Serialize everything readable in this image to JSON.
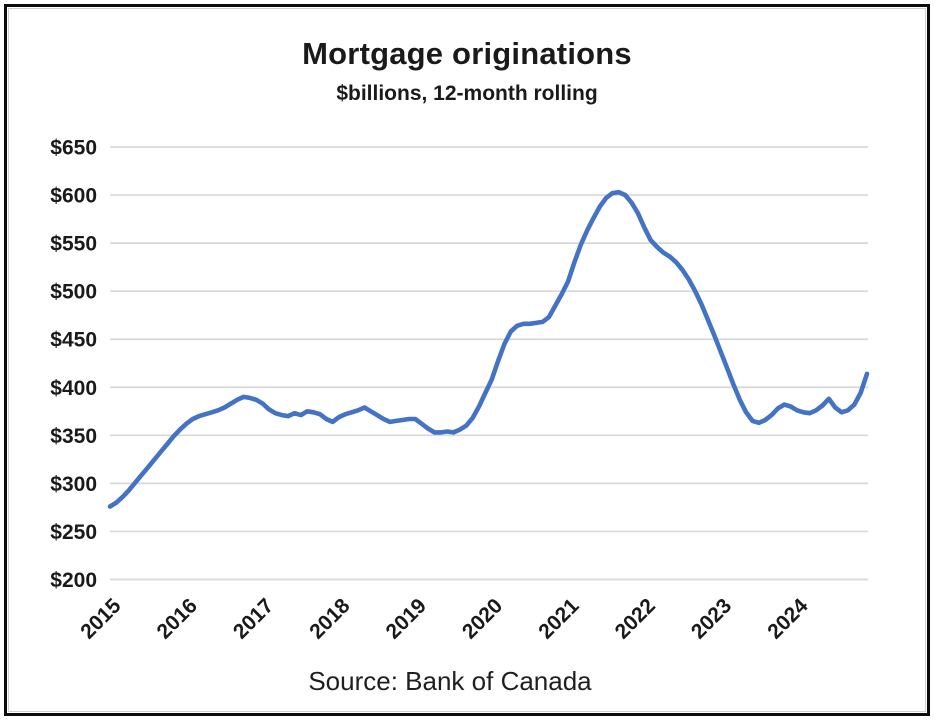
{
  "chart_data": {
    "type": "line",
    "title": "Mortgage originations",
    "subtitle": "$billions, 12-month rolling",
    "source": "Source: Bank of Canada",
    "xlabel": "",
    "ylabel": "",
    "ylim": [
      200,
      650
    ],
    "y_tick_step": 50,
    "y_tick_labels": [
      "$200",
      "$250",
      "$300",
      "$350",
      "$400",
      "$450",
      "$500",
      "$550",
      "$600",
      "$650"
    ],
    "x_tick_labels": [
      "2015",
      "2016",
      "2017",
      "2018",
      "2019",
      "2020",
      "2021",
      "2022",
      "2023",
      "2024"
    ],
    "frequency": "monthly",
    "x_range_months": [
      "2015-01",
      "2024-12"
    ],
    "grid": "horizontal",
    "legend_position": "none",
    "line_color": "#4472C4",
    "gridline_color": "#D8D8D8",
    "text_color": "#1a1a1a",
    "series": [
      {
        "name": "Mortgage originations, $billions, 12-month rolling",
        "values": [
          276,
          280,
          286,
          293,
          301,
          309,
          317,
          325,
          333,
          341,
          349,
          356,
          362,
          367,
          370,
          372,
          374,
          376,
          379,
          383,
          387,
          390,
          389,
          387,
          383,
          377,
          373,
          371,
          370,
          373,
          371,
          375,
          374,
          372,
          367,
          364,
          369,
          372,
          374,
          376,
          379,
          375,
          371,
          367,
          364,
          365,
          366,
          367,
          367,
          362,
          357,
          353,
          353,
          354,
          353,
          356,
          360,
          368,
          380,
          394,
          408,
          427,
          445,
          458,
          464,
          466,
          466,
          467,
          468,
          473,
          485,
          497,
          510,
          530,
          548,
          563,
          576,
          588,
          597,
          602,
          603,
          600,
          592,
          581,
          566,
          553,
          546,
          540,
          536,
          530,
          522,
          512,
          500,
          486,
          470,
          454,
          437,
          420,
          403,
          387,
          374,
          365,
          363,
          366,
          371,
          378,
          382,
          380,
          376,
          374,
          373,
          376,
          381,
          388,
          379,
          374,
          376,
          382,
          394,
          414
        ]
      }
    ]
  }
}
